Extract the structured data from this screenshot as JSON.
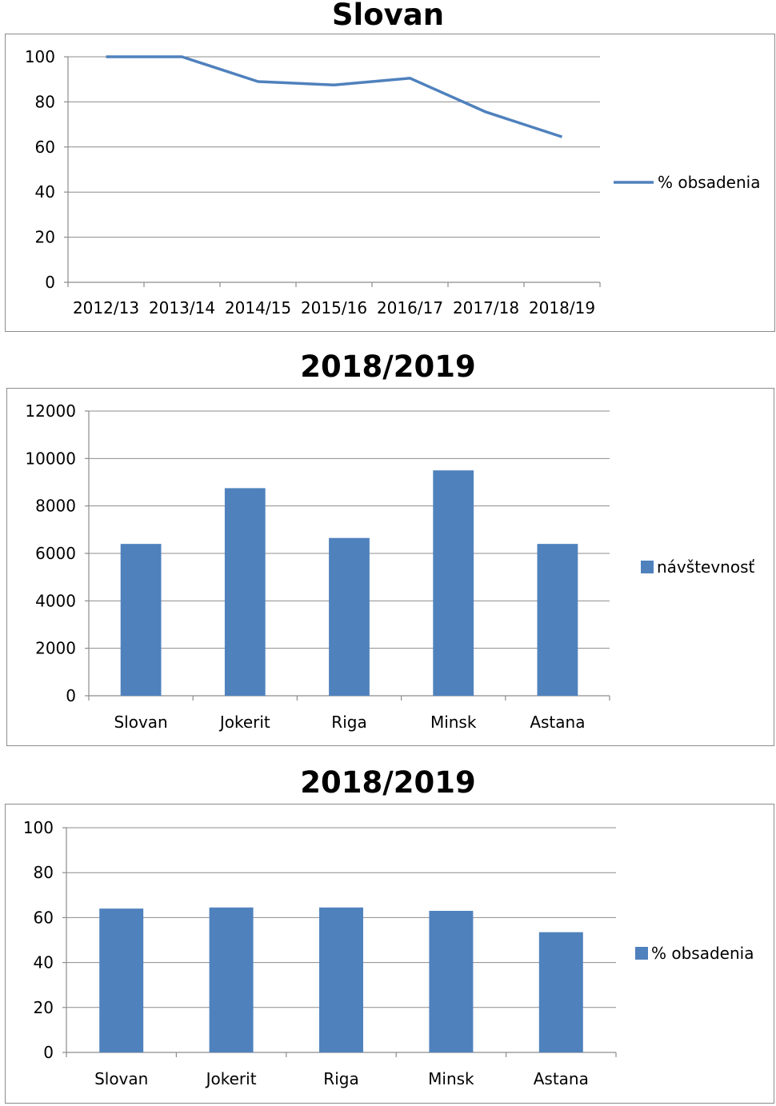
{
  "chart_data": [
    {
      "type": "line",
      "title": "Slovan",
      "categories": [
        "2012/13",
        "2013/14",
        "2014/15",
        "2015/16",
        "2016/17",
        "2017/18",
        "2018/19"
      ],
      "series": [
        {
          "name": "% obsadenia",
          "values": [
            100,
            100,
            89,
            87.5,
            90.5,
            75.5,
            64.5
          ],
          "color": "#4f81bd"
        }
      ],
      "ylim": [
        0,
        100
      ],
      "yticks": [
        0,
        20,
        40,
        60,
        80,
        100
      ],
      "grid": true,
      "legend_position": "right"
    },
    {
      "type": "bar",
      "title": "2018/2019",
      "categories": [
        "Slovan",
        "Jokerit",
        "Riga",
        "Minsk",
        "Astana"
      ],
      "series": [
        {
          "name": "návštevnosť",
          "values": [
            6400,
            8750,
            6650,
            9500,
            6400
          ],
          "color": "#4f81bd"
        }
      ],
      "ylim": [
        0,
        12000
      ],
      "yticks": [
        0,
        2000,
        4000,
        6000,
        8000,
        10000,
        12000
      ],
      "grid": true,
      "legend_position": "right"
    },
    {
      "type": "bar",
      "title": "2018/2019",
      "categories": [
        "Slovan",
        "Jokerit",
        "Riga",
        "Minsk",
        "Astana"
      ],
      "series": [
        {
          "name": "% obsadenia",
          "values": [
            64,
            64.5,
            64.5,
            63,
            53.5
          ],
          "color": "#4f81bd"
        }
      ],
      "ylim": [
        0,
        100
      ],
      "yticks": [
        0,
        20,
        40,
        60,
        80,
        100
      ],
      "grid": true,
      "legend_position": "right"
    }
  ]
}
